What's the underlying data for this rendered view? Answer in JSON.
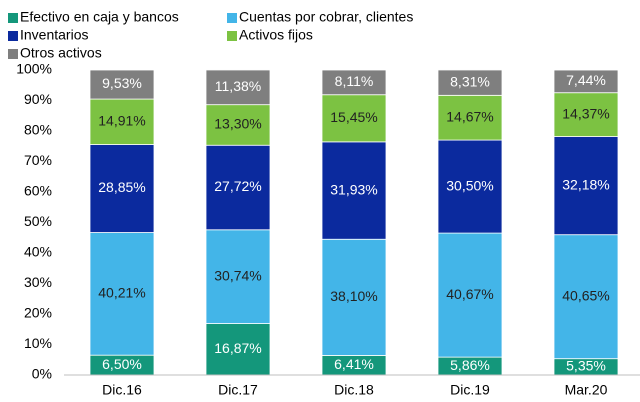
{
  "chart_data": {
    "type": "stacked_bar",
    "categories": [
      "Dic.16",
      "Dic.17",
      "Dic.18",
      "Dic.19",
      "Mar.20"
    ],
    "series": [
      {
        "name": "Efectivo en caja y bancos",
        "color": "#14977b",
        "values": [
          6.5,
          16.87,
          6.41,
          5.86,
          5.35
        ],
        "value_labels": [
          "6,50%",
          "16,87%",
          "6,41%",
          "5,86%",
          "5,35%"
        ]
      },
      {
        "name": "Cuentas por cobrar, clientes",
        "color": "#43b5e8",
        "values": [
          40.21,
          30.74,
          38.1,
          40.67,
          40.65
        ],
        "value_labels": [
          "40,21%",
          "30,74%",
          "38,10%",
          "40,67%",
          "40,65%"
        ]
      },
      {
        "name": "Inventarios",
        "color": "#0b2a9e",
        "values": [
          28.85,
          27.72,
          31.93,
          30.5,
          32.18
        ],
        "value_labels": [
          "28,85%",
          "27,72%",
          "31,93%",
          "30,50%",
          "32,18%"
        ]
      },
      {
        "name": "Activos fijos",
        "color": "#7cc242",
        "values": [
          14.91,
          13.3,
          15.45,
          14.67,
          14.37
        ],
        "value_labels": [
          "14,91%",
          "13,30%",
          "15,45%",
          "14,67%",
          "14,37%"
        ]
      },
      {
        "name": "Otros activos",
        "color": "#7f7f7f",
        "values": [
          9.53,
          11.38,
          8.11,
          8.31,
          7.44
        ],
        "value_labels": [
          "9,53%",
          "11,38%",
          "8,11%",
          "8,31%",
          "7,44%"
        ]
      }
    ],
    "ylim": [
      0,
      100
    ],
    "yticks": [
      {
        "value": 0,
        "label": "0%"
      },
      {
        "value": 10,
        "label": "10%"
      },
      {
        "value": 20,
        "label": "20%"
      },
      {
        "value": 30,
        "label": "30%"
      },
      {
        "value": 40,
        "label": "40%"
      },
      {
        "value": 50,
        "label": "50%"
      },
      {
        "value": 60,
        "label": "60%"
      },
      {
        "value": 70,
        "label": "70%"
      },
      {
        "value": 80,
        "label": "80%"
      },
      {
        "value": 90,
        "label": "90%"
      },
      {
        "value": 100,
        "label": "100%"
      }
    ],
    "legend": "top-left"
  }
}
